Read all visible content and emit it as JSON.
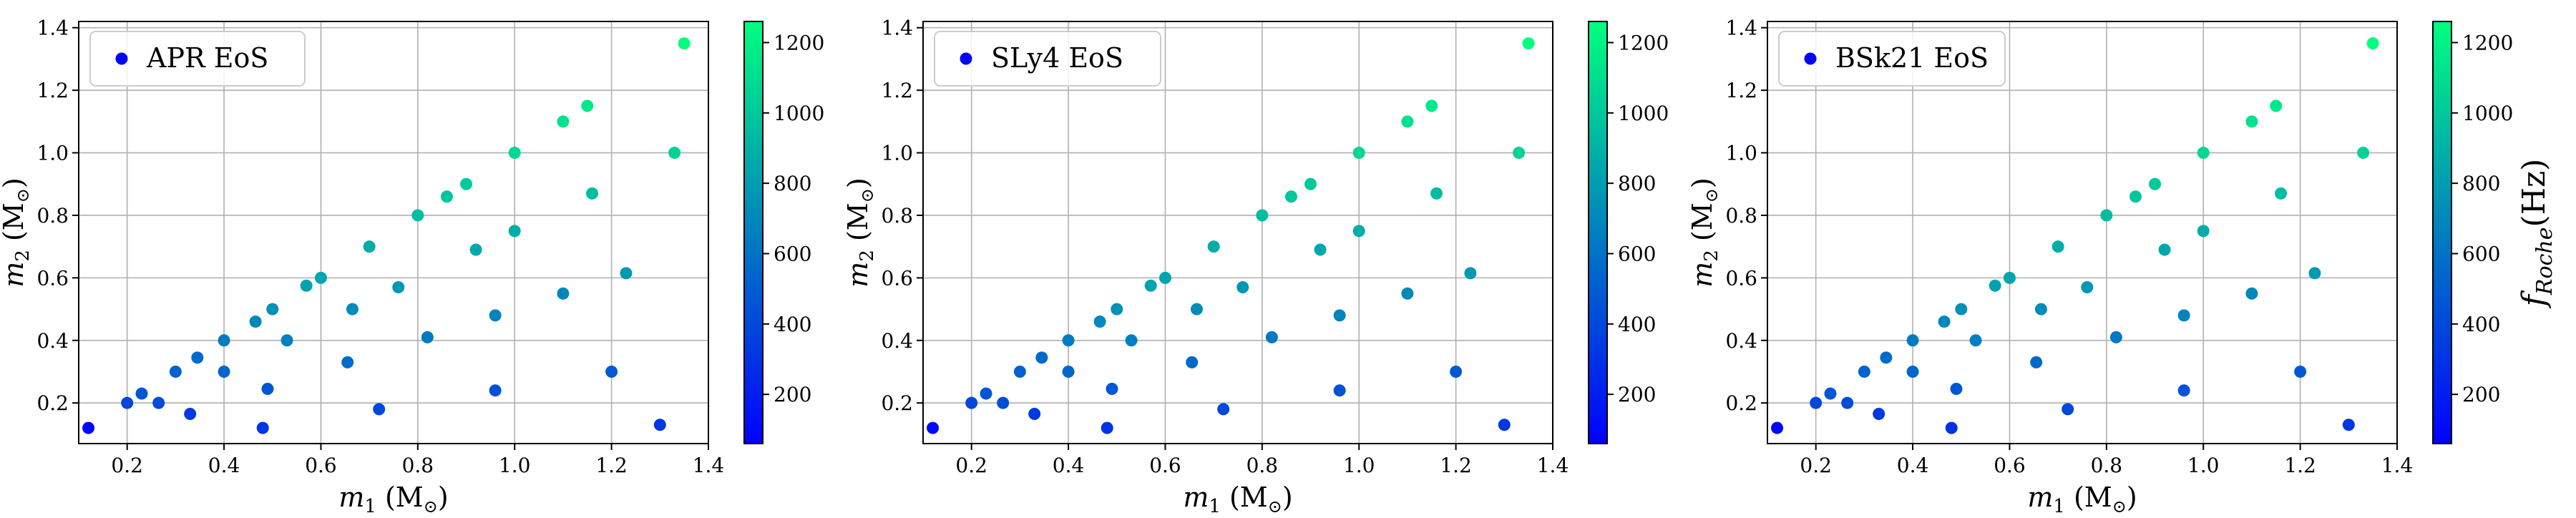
{
  "chart_data": [
    {
      "type": "scatter",
      "legend": "APR EoS",
      "legend_position": "top-left",
      "xlabel": {
        "main": "m",
        "sub": "1",
        "unit": " (M",
        "unit_sub": "⊙",
        "close": ")"
      },
      "ylabel": {
        "main": "m",
        "sub": "2",
        "unit": " (M",
        "unit_sub": "⊙",
        "close": ")"
      },
      "xlim": [
        0.1,
        1.4
      ],
      "ylim": [
        0.07,
        1.42
      ],
      "xticks": [
        0.2,
        0.4,
        0.6,
        0.8,
        1.0,
        1.2,
        1.4
      ],
      "xtick_labels": [
        "0.2",
        "0.4",
        "0.6",
        "0.8",
        "1.0",
        "1.2",
        "1.4"
      ],
      "yticks": [
        0.2,
        0.4,
        0.6,
        0.8,
        1.0,
        1.2,
        1.4
      ],
      "ytick_labels": [
        "0.2",
        "0.4",
        "0.6",
        "0.8",
        "1.0",
        "1.2",
        "1.4"
      ],
      "grid": true,
      "colorbar": {
        "range": [
          60,
          1260
        ],
        "ticks": [
          200,
          400,
          600,
          800,
          1000,
          1200
        ],
        "tick_labels": [
          "200",
          "400",
          "600",
          "800",
          "1000",
          "1200"
        ],
        "label": "",
        "colors": [
          "#0000ff",
          "#00ff80"
        ]
      },
      "points": [
        {
          "x": 0.12,
          "y": 0.12,
          "c": 100
        },
        {
          "x": 0.2,
          "y": 0.2,
          "c": 400
        },
        {
          "x": 0.23,
          "y": 0.23,
          "c": 460
        },
        {
          "x": 0.265,
          "y": 0.2,
          "c": 420
        },
        {
          "x": 0.3,
          "y": 0.3,
          "c": 520
        },
        {
          "x": 0.33,
          "y": 0.165,
          "c": 330
        },
        {
          "x": 0.345,
          "y": 0.345,
          "c": 560
        },
        {
          "x": 0.4,
          "y": 0.4,
          "c": 640
        },
        {
          "x": 0.4,
          "y": 0.3,
          "c": 540
        },
        {
          "x": 0.465,
          "y": 0.46,
          "c": 700
        },
        {
          "x": 0.48,
          "y": 0.12,
          "c": 300
        },
        {
          "x": 0.49,
          "y": 0.245,
          "c": 470
        },
        {
          "x": 0.5,
          "y": 0.5,
          "c": 740
        },
        {
          "x": 0.53,
          "y": 0.4,
          "c": 660
        },
        {
          "x": 0.57,
          "y": 0.575,
          "c": 820
        },
        {
          "x": 0.6,
          "y": 0.6,
          "c": 840
        },
        {
          "x": 0.655,
          "y": 0.33,
          "c": 560
        },
        {
          "x": 0.665,
          "y": 0.5,
          "c": 720
        },
        {
          "x": 0.7,
          "y": 0.7,
          "c": 880
        },
        {
          "x": 0.72,
          "y": 0.18,
          "c": 400
        },
        {
          "x": 0.76,
          "y": 0.57,
          "c": 770
        },
        {
          "x": 0.8,
          "y": 0.8,
          "c": 950
        },
        {
          "x": 0.82,
          "y": 0.41,
          "c": 630
        },
        {
          "x": 0.86,
          "y": 0.86,
          "c": 990
        },
        {
          "x": 0.9,
          "y": 0.9,
          "c": 1010
        },
        {
          "x": 0.92,
          "y": 0.69,
          "c": 850
        },
        {
          "x": 0.96,
          "y": 0.24,
          "c": 440
        },
        {
          "x": 0.96,
          "y": 0.48,
          "c": 680
        },
        {
          "x": 1.0,
          "y": 1.0,
          "c": 1070
        },
        {
          "x": 1.0,
          "y": 0.75,
          "c": 880
        },
        {
          "x": 1.1,
          "y": 0.55,
          "c": 700
        },
        {
          "x": 1.1,
          "y": 1.1,
          "c": 1120
        },
        {
          "x": 1.15,
          "y": 1.15,
          "c": 1150
        },
        {
          "x": 1.16,
          "y": 0.87,
          "c": 950
        },
        {
          "x": 1.2,
          "y": 0.3,
          "c": 480
        },
        {
          "x": 1.23,
          "y": 0.615,
          "c": 790
        },
        {
          "x": 1.3,
          "y": 0.13,
          "c": 320
        },
        {
          "x": 1.33,
          "y": 1.0,
          "c": 1050
        },
        {
          "x": 1.35,
          "y": 1.35,
          "c": 1260
        }
      ]
    },
    {
      "type": "scatter",
      "legend": "SLy4 EoS",
      "legend_position": "top-left",
      "xlabel": {
        "main": "m",
        "sub": "1",
        "unit": " (M",
        "unit_sub": "⊙",
        "close": ")"
      },
      "ylabel": {
        "main": "m",
        "sub": "2",
        "unit": " (M",
        "unit_sub": "⊙",
        "close": ")"
      },
      "xlim": [
        0.1,
        1.4
      ],
      "ylim": [
        0.07,
        1.42
      ],
      "xticks": [
        0.2,
        0.4,
        0.6,
        0.8,
        1.0,
        1.2,
        1.4
      ],
      "xtick_labels": [
        "0.2",
        "0.4",
        "0.6",
        "0.8",
        "1.0",
        "1.2",
        "1.4"
      ],
      "yticks": [
        0.2,
        0.4,
        0.6,
        0.8,
        1.0,
        1.2,
        1.4
      ],
      "ytick_labels": [
        "0.2",
        "0.4",
        "0.6",
        "0.8",
        "1.0",
        "1.2",
        "1.4"
      ],
      "grid": true,
      "colorbar": {
        "range": [
          60,
          1260
        ],
        "ticks": [
          200,
          400,
          600,
          800,
          1000,
          1200
        ],
        "tick_labels": [
          "200",
          "400",
          "600",
          "800",
          "1000",
          "1200"
        ],
        "label": "",
        "colors": [
          "#0000ff",
          "#00ff80"
        ]
      },
      "points": [
        {
          "x": 0.12,
          "y": 0.12,
          "c": 100
        },
        {
          "x": 0.2,
          "y": 0.2,
          "c": 400
        },
        {
          "x": 0.23,
          "y": 0.23,
          "c": 460
        },
        {
          "x": 0.265,
          "y": 0.2,
          "c": 420
        },
        {
          "x": 0.3,
          "y": 0.3,
          "c": 520
        },
        {
          "x": 0.33,
          "y": 0.165,
          "c": 330
        },
        {
          "x": 0.345,
          "y": 0.345,
          "c": 560
        },
        {
          "x": 0.4,
          "y": 0.4,
          "c": 640
        },
        {
          "x": 0.4,
          "y": 0.3,
          "c": 540
        },
        {
          "x": 0.465,
          "y": 0.46,
          "c": 700
        },
        {
          "x": 0.48,
          "y": 0.12,
          "c": 300
        },
        {
          "x": 0.49,
          "y": 0.245,
          "c": 470
        },
        {
          "x": 0.5,
          "y": 0.5,
          "c": 740
        },
        {
          "x": 0.53,
          "y": 0.4,
          "c": 660
        },
        {
          "x": 0.57,
          "y": 0.575,
          "c": 820
        },
        {
          "x": 0.6,
          "y": 0.6,
          "c": 840
        },
        {
          "x": 0.655,
          "y": 0.33,
          "c": 560
        },
        {
          "x": 0.665,
          "y": 0.5,
          "c": 720
        },
        {
          "x": 0.7,
          "y": 0.7,
          "c": 880
        },
        {
          "x": 0.72,
          "y": 0.18,
          "c": 400
        },
        {
          "x": 0.76,
          "y": 0.57,
          "c": 770
        },
        {
          "x": 0.8,
          "y": 0.8,
          "c": 950
        },
        {
          "x": 0.82,
          "y": 0.41,
          "c": 630
        },
        {
          "x": 0.86,
          "y": 0.86,
          "c": 990
        },
        {
          "x": 0.9,
          "y": 0.9,
          "c": 1010
        },
        {
          "x": 0.92,
          "y": 0.69,
          "c": 850
        },
        {
          "x": 0.96,
          "y": 0.24,
          "c": 440
        },
        {
          "x": 0.96,
          "y": 0.48,
          "c": 680
        },
        {
          "x": 1.0,
          "y": 1.0,
          "c": 1070
        },
        {
          "x": 1.0,
          "y": 0.75,
          "c": 880
        },
        {
          "x": 1.1,
          "y": 0.55,
          "c": 700
        },
        {
          "x": 1.1,
          "y": 1.1,
          "c": 1120
        },
        {
          "x": 1.15,
          "y": 1.15,
          "c": 1150
        },
        {
          "x": 1.16,
          "y": 0.87,
          "c": 950
        },
        {
          "x": 1.2,
          "y": 0.3,
          "c": 480
        },
        {
          "x": 1.23,
          "y": 0.615,
          "c": 790
        },
        {
          "x": 1.3,
          "y": 0.13,
          "c": 320
        },
        {
          "x": 1.33,
          "y": 1.0,
          "c": 1050
        },
        {
          "x": 1.35,
          "y": 1.35,
          "c": 1260
        }
      ]
    },
    {
      "type": "scatter",
      "legend": "BSk21 EoS",
      "legend_position": "top-left",
      "xlabel": {
        "main": "m",
        "sub": "1",
        "unit": " (M",
        "unit_sub": "⊙",
        "close": ")"
      },
      "ylabel": {
        "main": "m",
        "sub": "2",
        "unit": " (M",
        "unit_sub": "⊙",
        "close": ")"
      },
      "xlim": [
        0.1,
        1.4
      ],
      "ylim": [
        0.07,
        1.42
      ],
      "xticks": [
        0.2,
        0.4,
        0.6,
        0.8,
        1.0,
        1.2,
        1.4
      ],
      "xtick_labels": [
        "0.2",
        "0.4",
        "0.6",
        "0.8",
        "1.0",
        "1.2",
        "1.4"
      ],
      "yticks": [
        0.2,
        0.4,
        0.6,
        0.8,
        1.0,
        1.2,
        1.4
      ],
      "ytick_labels": [
        "0.2",
        "0.4",
        "0.6",
        "0.8",
        "1.0",
        "1.2",
        "1.4"
      ],
      "grid": true,
      "colorbar": {
        "range": [
          60,
          1260
        ],
        "ticks": [
          200,
          400,
          600,
          800,
          1000,
          1200
        ],
        "tick_labels": [
          "200",
          "400",
          "600",
          "800",
          "1000",
          "1200"
        ],
        "label": {
          "main": "f",
          "sub": "Roche",
          "unit": "(Hz)"
        },
        "colors": [
          "#0000ff",
          "#00ff80"
        ]
      },
      "points": [
        {
          "x": 0.12,
          "y": 0.12,
          "c": 100
        },
        {
          "x": 0.2,
          "y": 0.2,
          "c": 400
        },
        {
          "x": 0.23,
          "y": 0.23,
          "c": 460
        },
        {
          "x": 0.265,
          "y": 0.2,
          "c": 420
        },
        {
          "x": 0.3,
          "y": 0.3,
          "c": 520
        },
        {
          "x": 0.33,
          "y": 0.165,
          "c": 330
        },
        {
          "x": 0.345,
          "y": 0.345,
          "c": 560
        },
        {
          "x": 0.4,
          "y": 0.4,
          "c": 640
        },
        {
          "x": 0.4,
          "y": 0.3,
          "c": 540
        },
        {
          "x": 0.465,
          "y": 0.46,
          "c": 700
        },
        {
          "x": 0.48,
          "y": 0.12,
          "c": 300
        },
        {
          "x": 0.49,
          "y": 0.245,
          "c": 470
        },
        {
          "x": 0.5,
          "y": 0.5,
          "c": 740
        },
        {
          "x": 0.53,
          "y": 0.4,
          "c": 660
        },
        {
          "x": 0.57,
          "y": 0.575,
          "c": 820
        },
        {
          "x": 0.6,
          "y": 0.6,
          "c": 840
        },
        {
          "x": 0.655,
          "y": 0.33,
          "c": 560
        },
        {
          "x": 0.665,
          "y": 0.5,
          "c": 720
        },
        {
          "x": 0.7,
          "y": 0.7,
          "c": 880
        },
        {
          "x": 0.72,
          "y": 0.18,
          "c": 400
        },
        {
          "x": 0.76,
          "y": 0.57,
          "c": 770
        },
        {
          "x": 0.8,
          "y": 0.8,
          "c": 950
        },
        {
          "x": 0.82,
          "y": 0.41,
          "c": 630
        },
        {
          "x": 0.86,
          "y": 0.86,
          "c": 990
        },
        {
          "x": 0.9,
          "y": 0.9,
          "c": 1010
        },
        {
          "x": 0.92,
          "y": 0.69,
          "c": 850
        },
        {
          "x": 0.96,
          "y": 0.24,
          "c": 440
        },
        {
          "x": 0.96,
          "y": 0.48,
          "c": 680
        },
        {
          "x": 1.0,
          "y": 1.0,
          "c": 1070
        },
        {
          "x": 1.0,
          "y": 0.75,
          "c": 880
        },
        {
          "x": 1.1,
          "y": 0.55,
          "c": 700
        },
        {
          "x": 1.1,
          "y": 1.1,
          "c": 1120
        },
        {
          "x": 1.15,
          "y": 1.15,
          "c": 1150
        },
        {
          "x": 1.16,
          "y": 0.87,
          "c": 950
        },
        {
          "x": 1.2,
          "y": 0.3,
          "c": 480
        },
        {
          "x": 1.23,
          "y": 0.615,
          "c": 790
        },
        {
          "x": 1.3,
          "y": 0.13,
          "c": 320
        },
        {
          "x": 1.33,
          "y": 1.0,
          "c": 1050
        },
        {
          "x": 1.35,
          "y": 1.35,
          "c": 1260
        }
      ]
    }
  ]
}
